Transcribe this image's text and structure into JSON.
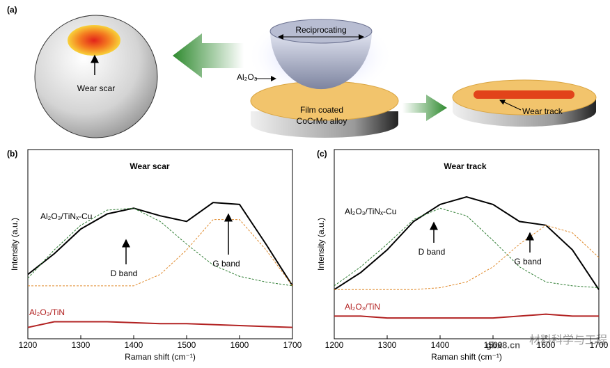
{
  "figure": {
    "panel_a": "(a)",
    "schematic": {
      "ball_label": "Wear scar",
      "motion_label": "Reciprocating",
      "ball_material": "Al₂O₃",
      "disk_label_1": "Film coated",
      "disk_label_2": "CoCrMo alloy",
      "track_label": "Wear track"
    },
    "panel_b": "(b)",
    "panel_c": "(c)",
    "watermark": "材料科学与工程",
    "watermark_url": "gbx8.cn"
  },
  "chart_data": [
    {
      "type": "line",
      "title": "Wear scar",
      "x_label": "Raman shift (cm⁻¹)",
      "y_label": "Intensity (a.u.)",
      "x": [
        1200,
        1250,
        1300,
        1350,
        1400,
        1450,
        1500,
        1550,
        1600,
        1650,
        1700
      ],
      "xlim": [
        1200,
        1700
      ],
      "xticks": [
        1200,
        1300,
        1400,
        1500,
        1600,
        1700
      ],
      "ylim": [
        0,
        100
      ],
      "series": [
        {
          "name": "Al₂O₃/TiNₓ-Cu",
          "color": "#000000",
          "style": "solid",
          "values": [
            34,
            45,
            58,
            66,
            69,
            65,
            62,
            72,
            71,
            50,
            28
          ]
        },
        {
          "color": "#2e7d32",
          "style": "dashed",
          "values": [
            32,
            47,
            60,
            68,
            69,
            62,
            50,
            39,
            33,
            30,
            28
          ]
        },
        {
          "color": "#e08a2c",
          "style": "dashed",
          "values": [
            28,
            28,
            28,
            28,
            28,
            34,
            47,
            63,
            63,
            47,
            28
          ]
        },
        {
          "name": "Al₂O₃/TiN",
          "color": "#b22222",
          "style": "solid",
          "values": [
            6,
            9,
            9,
            9,
            8.5,
            8,
            8,
            7.5,
            7,
            6.5,
            6
          ]
        }
      ],
      "annotations": [
        "D band",
        "G band"
      ]
    },
    {
      "type": "line",
      "title": "Wear track",
      "x_label": "Raman shift (cm⁻¹)",
      "y_label": "Intensity (a.u.)",
      "x": [
        1200,
        1250,
        1300,
        1350,
        1400,
        1450,
        1500,
        1550,
        1600,
        1650,
        1700
      ],
      "xlim": [
        1200,
        1700
      ],
      "xticks": [
        1200,
        1300,
        1400,
        1500,
        1600,
        1700
      ],
      "ylim": [
        0,
        100
      ],
      "series": [
        {
          "name": "Al₂O₃/TiNₓ-Cu",
          "color": "#000000",
          "style": "solid",
          "values": [
            26,
            35,
            47,
            62,
            71,
            75,
            71,
            62,
            60,
            47,
            26
          ]
        },
        {
          "color": "#2e7d32",
          "style": "dashed",
          "values": [
            28,
            38,
            50,
            63,
            69,
            65,
            52,
            38,
            30,
            28,
            27
          ]
        },
        {
          "color": "#e08a2c",
          "style": "dashed",
          "values": [
            26,
            26,
            26,
            26,
            27,
            30,
            38,
            50,
            60,
            56,
            43
          ]
        },
        {
          "name": "Al₂O₃/TiN",
          "color": "#b22222",
          "style": "solid",
          "values": [
            12,
            12,
            11,
            11,
            11,
            11,
            11,
            12,
            13,
            12,
            12
          ]
        }
      ],
      "annotations": [
        "D band",
        "G band"
      ]
    }
  ]
}
